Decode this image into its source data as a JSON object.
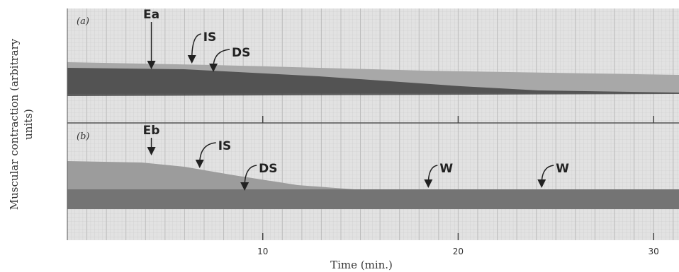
{
  "chart_data": {
    "type": "kymograph",
    "ylabel_lines": [
      "Muscular contraction (arbitrary",
      "units)"
    ],
    "xlabel": "Time (min.)",
    "xlim": [
      0,
      31.3
    ],
    "xticks": [
      10,
      20,
      30
    ],
    "panels": [
      {
        "label": "(a)",
        "annotations": [
          {
            "text": "Ea",
            "x": 4.3
          },
          {
            "text": "IS",
            "x": 6.3
          },
          {
            "text": "DS",
            "x": 7.4
          }
        ]
      },
      {
        "label": "(b)",
        "annotations": [
          {
            "text": "Eb",
            "x": 4.3
          },
          {
            "text": "IS",
            "x": 6.7
          },
          {
            "text": "DS",
            "x": 9.0
          },
          {
            "text": "W",
            "x": 18.4
          },
          {
            "text": "W",
            "x": 24.2
          }
        ]
      }
    ]
  }
}
